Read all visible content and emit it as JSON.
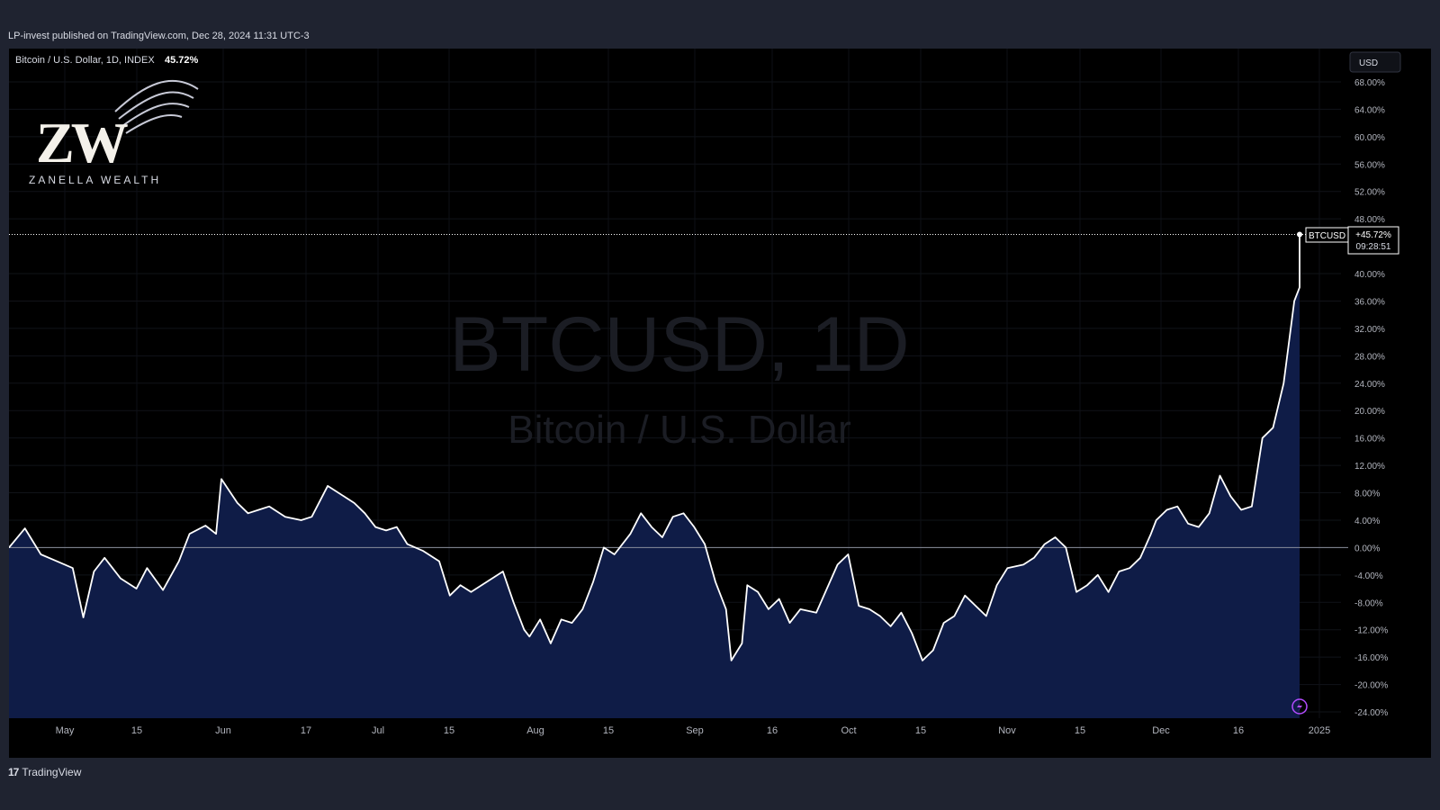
{
  "header": {
    "caption": "LP-invest published on TradingView.com, Dec 28, 2024 11:31 UTC-3"
  },
  "legend": {
    "symbol_text": "Bitcoin / U.S. Dollar, 1D, INDEX",
    "change_value": "45.72%"
  },
  "watermark": {
    "symbol_line": "BTCUSD, 1D",
    "name_line": "Bitcoin / U.S. Dollar"
  },
  "logo": {
    "monogram": "ZW",
    "text": "ZANELLA WEALTH"
  },
  "price_scale": {
    "currency_button": "USD",
    "symbol_tag": "BTCUSD",
    "last_value_label": "+45.72%",
    "countdown_label": "09:28:51"
  },
  "footer": {
    "brand_text": "TradingView",
    "logo_text": "17"
  },
  "colors": {
    "page_background": "#1f2330",
    "chart_background": "#000000",
    "line": "#ffffff",
    "area_fill": "#0f1c47",
    "axis_text": "#b2b5be",
    "watermark": "#1c1f28"
  },
  "chart_data": {
    "type": "area",
    "title": "Bitcoin / U.S. Dollar, 1D, INDEX",
    "series": [
      {
        "name": "BTCUSD",
        "points": [
          [
            "2024-04-29",
            0.0
          ],
          [
            "2024-05-02",
            2.8
          ],
          [
            "2024-05-05",
            -1.0
          ],
          [
            "2024-05-08",
            -2.0
          ],
          [
            "2024-05-11",
            -3.0
          ],
          [
            "2024-05-13",
            -10.2
          ],
          [
            "2024-05-15",
            -3.5
          ],
          [
            "2024-05-17",
            -1.5
          ],
          [
            "2024-05-20",
            -4.5
          ],
          [
            "2024-05-23",
            -6.0
          ],
          [
            "2024-05-25",
            -3.0
          ],
          [
            "2024-05-28",
            -6.2
          ],
          [
            "2024-05-31",
            -2.0
          ],
          [
            "2024-06-02",
            2.0
          ],
          [
            "2024-06-05",
            3.2
          ],
          [
            "2024-06-07",
            2.0
          ],
          [
            "2024-06-08",
            10.0
          ],
          [
            "2024-06-11",
            6.5
          ],
          [
            "2024-06-13",
            5.0
          ],
          [
            "2024-06-15",
            5.5
          ],
          [
            "2024-06-17",
            6.0
          ],
          [
            "2024-06-20",
            4.5
          ],
          [
            "2024-06-23",
            4.0
          ],
          [
            "2024-06-25",
            4.5
          ],
          [
            "2024-06-28",
            9.0
          ],
          [
            "2024-07-01",
            7.5
          ],
          [
            "2024-07-03",
            6.5
          ],
          [
            "2024-07-05",
            5.0
          ],
          [
            "2024-07-07",
            3.0
          ],
          [
            "2024-07-09",
            2.5
          ],
          [
            "2024-07-11",
            3.0
          ],
          [
            "2024-07-13",
            0.5
          ],
          [
            "2024-07-16",
            -0.5
          ],
          [
            "2024-07-19",
            -2.0
          ],
          [
            "2024-07-21",
            -7.0
          ],
          [
            "2024-07-23",
            -5.5
          ],
          [
            "2024-07-25",
            -6.5
          ],
          [
            "2024-07-28",
            -5.0
          ],
          [
            "2024-07-31",
            -3.5
          ],
          [
            "2024-08-02",
            -8.0
          ],
          [
            "2024-08-04",
            -12.0
          ],
          [
            "2024-08-05",
            -13.0
          ],
          [
            "2024-08-07",
            -10.5
          ],
          [
            "2024-08-09",
            -14.0
          ],
          [
            "2024-08-11",
            -10.5
          ],
          [
            "2024-08-13",
            -11.0
          ],
          [
            "2024-08-15",
            -9.0
          ],
          [
            "2024-08-17",
            -5.0
          ],
          [
            "2024-08-19",
            0.0
          ],
          [
            "2024-08-21",
            -1.0
          ],
          [
            "2024-08-24",
            2.0
          ],
          [
            "2024-08-26",
            5.0
          ],
          [
            "2024-08-28",
            3.0
          ],
          [
            "2024-08-30",
            1.5
          ],
          [
            "2024-09-01",
            4.5
          ],
          [
            "2024-09-03",
            5.0
          ],
          [
            "2024-09-05",
            3.0
          ],
          [
            "2024-09-07",
            0.5
          ],
          [
            "2024-09-09",
            -5.0
          ],
          [
            "2024-09-11",
            -9.0
          ],
          [
            "2024-09-12",
            -16.5
          ],
          [
            "2024-09-14",
            -14.0
          ],
          [
            "2024-09-15",
            -5.5
          ],
          [
            "2024-09-17",
            -6.5
          ],
          [
            "2024-09-19",
            -9.0
          ],
          [
            "2024-09-21",
            -7.5
          ],
          [
            "2024-09-23",
            -11.0
          ],
          [
            "2024-09-25",
            -9.0
          ],
          [
            "2024-09-28",
            -9.5
          ],
          [
            "2024-09-30",
            -6.0
          ],
          [
            "2024-10-02",
            -2.5
          ],
          [
            "2024-10-04",
            -1.0
          ],
          [
            "2024-10-06",
            -8.5
          ],
          [
            "2024-10-08",
            -9.0
          ],
          [
            "2024-10-10",
            -10.0
          ],
          [
            "2024-10-12",
            -11.5
          ],
          [
            "2024-10-14",
            -9.5
          ],
          [
            "2024-10-16",
            -12.5
          ],
          [
            "2024-10-18",
            -16.5
          ],
          [
            "2024-10-20",
            -15.0
          ],
          [
            "2024-10-22",
            -11.0
          ],
          [
            "2024-10-24",
            -10.0
          ],
          [
            "2024-10-26",
            -7.0
          ],
          [
            "2024-10-28",
            -8.5
          ],
          [
            "2024-10-30",
            -10.0
          ],
          [
            "2024-11-01",
            -5.5
          ],
          [
            "2024-11-03",
            -3.0
          ],
          [
            "2024-11-06",
            -2.5
          ],
          [
            "2024-11-08",
            -1.5
          ],
          [
            "2024-11-10",
            0.5
          ],
          [
            "2024-11-12",
            1.5
          ],
          [
            "2024-11-14",
            0.0
          ],
          [
            "2024-11-16",
            -6.5
          ],
          [
            "2024-11-18",
            -5.5
          ],
          [
            "2024-11-20",
            -4.0
          ],
          [
            "2024-11-22",
            -6.5
          ],
          [
            "2024-11-24",
            -3.5
          ],
          [
            "2024-11-26",
            -3.0
          ],
          [
            "2024-11-28",
            -1.5
          ],
          [
            "2024-11-30",
            2.0
          ],
          [
            "2024-12-01",
            4.0
          ],
          [
            "2024-12-03",
            5.5
          ],
          [
            "2024-12-05",
            6.0
          ],
          [
            "2024-12-07",
            3.5
          ],
          [
            "2024-12-09",
            3.0
          ],
          [
            "2024-12-11",
            5.0
          ],
          [
            "2024-12-13",
            10.5
          ],
          [
            "2024-12-15",
            7.5
          ],
          [
            "2024-12-17",
            5.5
          ],
          [
            "2024-12-19",
            6.0
          ],
          [
            "2024-12-21",
            16.0
          ],
          [
            "2024-12-23",
            17.5
          ],
          [
            "2024-12-25",
            24.0
          ],
          [
            "2024-12-27",
            36.0
          ],
          [
            "2024-12-28",
            38.0
          ],
          [
            "2024-12-28",
            45.72
          ]
        ]
      }
    ],
    "x_tick_labels": [
      "May",
      "15",
      "Jun",
      "17",
      "Jul",
      "15",
      "Aug",
      "15",
      "Sep",
      "16",
      "Oct",
      "15",
      "Nov",
      "15",
      "Dec",
      "16",
      "2025"
    ],
    "y_tick_labels": [
      "68.00%",
      "64.00%",
      "60.00%",
      "56.00%",
      "52.00%",
      "48.00%",
      "40.00%",
      "36.00%",
      "32.00%",
      "28.00%",
      "24.00%",
      "20.00%",
      "16.00%",
      "12.00%",
      "8.00%",
      "4.00%",
      "0.00%",
      "-4.00%",
      "-8.00%",
      "-12.00%",
      "-16.00%",
      "-20.00%",
      "-24.00%"
    ],
    "ylim": [
      -24,
      68
    ],
    "grid": true,
    "last_value": 45.72
  }
}
